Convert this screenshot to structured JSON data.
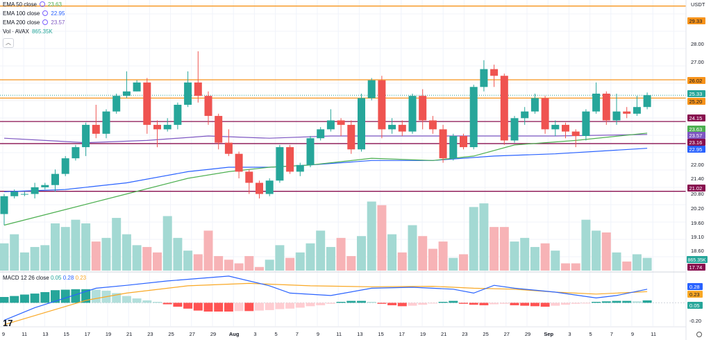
{
  "legend": {
    "ema50": {
      "label": "EMA 50 close",
      "value": "23.63",
      "color": "#4caf50"
    },
    "ema100": {
      "label": "EMA 100 close",
      "value": "22.95",
      "color": "#2962ff"
    },
    "ema200": {
      "label": "EMA 200 close",
      "value": "23.57",
      "color": "#7e57c2"
    },
    "vol": {
      "label": "Vol · AVAX",
      "value": "865.35K",
      "color": "#26a69a"
    },
    "macd": {
      "label": "MACD 12 26 close",
      "v1": "0.05",
      "v2": "0.28",
      "v3": "0.23"
    }
  },
  "currency": "USDT",
  "chart_data": {
    "type": "candlestick",
    "price_axis": {
      "ticks": [
        "29.33",
        "28.00",
        "27.00",
        "26.02",
        "25.33",
        "25.20",
        "24.15",
        "23.63",
        "23.57",
        "23.16",
        "22.95",
        "22.00",
        "21.40",
        "21.02",
        "20.80",
        "20.20",
        "19.60",
        "19.10",
        "18.60",
        "17.74"
      ]
    },
    "x_tick_labels": [
      "9",
      "11",
      "13",
      "15",
      "17",
      "19",
      "21",
      "23",
      "25",
      "27",
      "29",
      "Aug",
      "3",
      "5",
      "7",
      "9",
      "11",
      "13",
      "15",
      "17",
      "19",
      "21",
      "23",
      "25",
      "27",
      "29",
      "Sep",
      "3",
      "5",
      "7",
      "9",
      "11"
    ],
    "horizontal_lines": [
      {
        "price": 29.33,
        "color": "#f7931a"
      },
      {
        "price": 26.02,
        "color": "#f7931a"
      },
      {
        "price": 25.2,
        "color": "#f7931a"
      },
      {
        "price": 24.15,
        "color": "#880e4f"
      },
      {
        "price": 23.16,
        "color": "#880e4f"
      },
      {
        "price": 21.02,
        "color": "#880e4f"
      }
    ],
    "candles": [
      [
        20.0,
        20.8,
        19.5,
        20.9
      ],
      [
        20.8,
        21.0,
        20.7,
        21.1
      ],
      [
        20.9,
        20.9,
        20.8,
        21.0
      ],
      [
        20.9,
        21.2,
        20.7,
        21.4
      ],
      [
        21.2,
        21.3,
        21.1,
        21.4
      ],
      [
        21.3,
        21.8,
        21.0,
        22.0
      ],
      [
        21.8,
        22.5,
        21.7,
        22.6
      ],
      [
        22.5,
        23.0,
        22.4,
        23.1
      ],
      [
        23.0,
        24.0,
        22.6,
        24.1
      ],
      [
        24.0,
        23.6,
        23.4,
        24.9
      ],
      [
        23.6,
        24.6,
        23.4,
        24.7
      ],
      [
        24.6,
        25.3,
        24.5,
        25.4
      ],
      [
        25.3,
        25.5,
        25.2,
        26.4
      ],
      [
        25.5,
        25.9,
        25.5,
        26.0
      ],
      [
        25.9,
        24.0,
        23.6,
        26.1
      ],
      [
        24.0,
        23.8,
        23.0,
        24.2
      ],
      [
        23.8,
        24.0,
        23.7,
        24.3
      ],
      [
        24.0,
        24.9,
        23.8,
        25.0
      ],
      [
        24.9,
        25.9,
        24.8,
        26.4
      ],
      [
        25.9,
        25.3,
        25.0,
        27.3
      ],
      [
        25.3,
        24.4,
        24.0,
        25.5
      ],
      [
        24.4,
        23.2,
        22.9,
        24.5
      ],
      [
        23.2,
        22.7,
        22.6,
        23.8
      ],
      [
        22.7,
        21.9,
        21.6,
        22.8
      ],
      [
        21.9,
        21.4,
        20.9,
        22.0
      ],
      [
        21.4,
        20.9,
        20.7,
        21.5
      ],
      [
        20.9,
        21.5,
        20.8,
        21.6
      ],
      [
        21.5,
        23.0,
        21.4,
        23.1
      ],
      [
        23.0,
        21.9,
        21.8,
        23.1
      ],
      [
        21.9,
        22.2,
        21.7,
        22.3
      ],
      [
        22.2,
        23.4,
        22.1,
        23.5
      ],
      [
        23.4,
        23.8,
        23.3,
        23.9
      ],
      [
        23.8,
        24.2,
        23.7,
        24.7
      ],
      [
        24.2,
        24.0,
        23.5,
        24.3
      ],
      [
        24.0,
        22.9,
        22.7,
        24.2
      ],
      [
        22.9,
        25.2,
        22.8,
        25.4
      ],
      [
        25.2,
        26.0,
        25.1,
        26.1
      ],
      [
        26.0,
        23.8,
        23.4,
        26.2
      ],
      [
        23.8,
        24.0,
        23.6,
        24.3
      ],
      [
        24.0,
        23.7,
        23.5,
        24.2
      ],
      [
        23.7,
        25.3,
        23.6,
        25.4
      ],
      [
        25.3,
        24.2,
        23.8,
        25.6
      ],
      [
        24.2,
        23.8,
        23.6,
        24.4
      ],
      [
        23.8,
        22.5,
        22.3,
        24.0
      ],
      [
        22.5,
        23.5,
        22.4,
        23.6
      ],
      [
        23.5,
        23.0,
        22.9,
        23.6
      ],
      [
        23.0,
        25.7,
        22.9,
        25.8
      ],
      [
        25.7,
        26.5,
        25.5,
        26.9
      ],
      [
        26.5,
        26.2,
        25.7,
        26.7
      ],
      [
        26.2,
        23.3,
        23.1,
        26.3
      ],
      [
        23.3,
        24.3,
        23.2,
        24.4
      ],
      [
        24.3,
        24.6,
        24.0,
        24.8
      ],
      [
        24.6,
        25.2,
        24.5,
        25.4
      ],
      [
        25.2,
        23.8,
        23.6,
        25.3
      ],
      [
        23.8,
        24.0,
        23.5,
        24.2
      ],
      [
        24.0,
        23.7,
        23.4,
        24.1
      ],
      [
        23.7,
        23.5,
        23.0,
        23.8
      ],
      [
        23.5,
        24.6,
        23.3,
        24.7
      ],
      [
        24.6,
        25.4,
        24.5,
        25.9
      ],
      [
        25.4,
        24.2,
        24.0,
        25.5
      ],
      [
        24.2,
        24.6,
        24.0,
        25.4
      ],
      [
        24.6,
        24.5,
        24.3,
        24.8
      ],
      [
        24.5,
        24.8,
        24.4,
        25.3
      ],
      [
        24.8,
        25.33,
        24.7,
        25.45
      ]
    ],
    "ema50": [
      [
        0,
        19.5
      ],
      [
        6,
        20.2
      ],
      [
        12,
        20.9
      ],
      [
        18,
        21.6
      ],
      [
        22,
        21.9
      ],
      [
        26,
        22.1
      ],
      [
        30,
        22.2
      ],
      [
        36,
        22.5
      ],
      [
        42,
        22.4
      ],
      [
        46,
        22.6
      ],
      [
        50,
        23.1
      ],
      [
        56,
        23.3
      ],
      [
        63,
        23.63
      ]
    ],
    "ema100": [
      [
        0,
        21.0
      ],
      [
        6,
        21.1
      ],
      [
        12,
        21.4
      ],
      [
        18,
        21.9
      ],
      [
        22,
        22.1
      ],
      [
        26,
        22.1
      ],
      [
        30,
        22.2
      ],
      [
        36,
        22.4
      ],
      [
        42,
        22.4
      ],
      [
        48,
        22.6
      ],
      [
        54,
        22.7
      ],
      [
        63,
        22.95
      ]
    ],
    "ema200": [
      [
        0,
        23.4
      ],
      [
        4,
        23.3
      ],
      [
        8,
        23.2
      ],
      [
        14,
        23.3
      ],
      [
        20,
        23.5
      ],
      [
        26,
        23.4
      ],
      [
        32,
        23.5
      ],
      [
        40,
        23.5
      ],
      [
        48,
        23.5
      ],
      [
        54,
        23.5
      ],
      [
        63,
        23.57
      ]
    ],
    "volume": [
      1.5,
      2.0,
      1.0,
      1.3,
      1.4,
      2.6,
      2.4,
      2.8,
      2.6,
      1.6,
      1.8,
      2.9,
      2.0,
      1.4,
      1.3,
      1.0,
      3.0,
      1.8,
      1.1,
      0.9,
      2.2,
      0.8,
      0.6,
      0.4,
      0.8,
      0.2,
      0.6,
      1.4,
      0.7,
      1.0,
      1.5,
      2.2,
      1.3,
      1.8,
      0.8,
      1.9,
      3.8,
      3.6,
      2.0,
      1.0,
      2.5,
      1.9,
      1.2,
      1.6,
      0.7,
      0.9,
      3.5,
      3.7,
      2.4,
      2.4,
      1.6,
      1.8,
      1.3,
      1.5,
      1.1,
      0.4,
      0.4,
      2.8,
      2.2,
      2.1,
      1.0,
      0.5,
      0.9,
      0.7
    ],
    "macd_histogram": [
      0.12,
      0.14,
      0.17,
      0.19,
      0.22,
      0.26,
      0.27,
      0.28,
      0.28,
      0.27,
      0.25,
      0.2,
      0.14,
      0.09,
      0.05,
      0.02,
      -0.03,
      -0.08,
      -0.12,
      -0.16,
      -0.18,
      -0.18,
      -0.18,
      -0.17,
      -0.17,
      -0.16,
      -0.15,
      -0.13,
      -0.12,
      -0.1,
      -0.07,
      -0.05,
      -0.02,
      0.02,
      0.04,
      0.04,
      0.02,
      -0.02,
      -0.05,
      -0.07,
      -0.06,
      -0.04,
      -0.01,
      0.02,
      0.04,
      -0.02,
      -0.04,
      -0.05,
      -0.03,
      -0.02,
      -0.05,
      -0.06,
      -0.07,
      -0.08,
      -0.06,
      -0.04,
      -0.02,
      -0.01,
      0.02,
      0.03,
      0.04,
      0.04,
      0.03,
      0.05
    ],
    "macd_line": [
      [
        0,
        -0.36
      ],
      [
        3,
        -0.1
      ],
      [
        6,
        0.1
      ],
      [
        9,
        0.3
      ],
      [
        12,
        0.36
      ],
      [
        16,
        0.45
      ],
      [
        22,
        0.55
      ],
      [
        26,
        0.35
      ],
      [
        28,
        0.2
      ],
      [
        32,
        0.15
      ],
      [
        36,
        0.3
      ],
      [
        40,
        0.32
      ],
      [
        44,
        0.28
      ],
      [
        46,
        0.2
      ],
      [
        48,
        0.36
      ],
      [
        50,
        0.3
      ],
      [
        54,
        0.22
      ],
      [
        58,
        0.1
      ],
      [
        60,
        0.15
      ],
      [
        63,
        0.28
      ]
    ],
    "signal_line": [
      [
        0,
        -0.45
      ],
      [
        4,
        -0.2
      ],
      [
        8,
        0.05
      ],
      [
        12,
        0.2
      ],
      [
        18,
        0.35
      ],
      [
        24,
        0.4
      ],
      [
        30,
        0.35
      ],
      [
        36,
        0.33
      ],
      [
        42,
        0.34
      ],
      [
        46,
        0.3
      ],
      [
        50,
        0.28
      ],
      [
        54,
        0.22
      ],
      [
        58,
        0.18
      ],
      [
        63,
        0.23
      ]
    ],
    "macd_axis": {
      "ticks": [
        "0.28",
        "0.23",
        "0.05",
        "-0.20"
      ]
    }
  }
}
